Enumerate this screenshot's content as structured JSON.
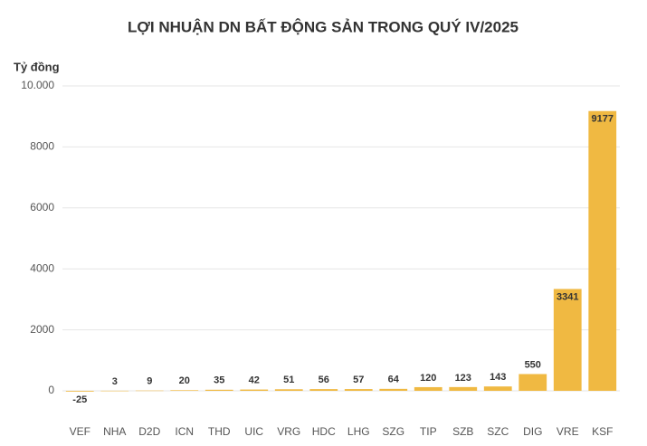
{
  "chart_data": {
    "type": "bar",
    "title": "LỢI NHUẬN DN BẤT ĐỘNG SẢN TRONG QUÝ IV/2025",
    "y_label": "Tỷ đồng",
    "categories": [
      "VEF",
      "NHA",
      "D2D",
      "ICN",
      "THD",
      "UIC",
      "VRG",
      "HDC",
      "LHG",
      "SZG",
      "TIP",
      "SZB",
      "SZC",
      "DIG",
      "VRE",
      "KSF"
    ],
    "values": [
      -25,
      3,
      9,
      20,
      35,
      42,
      51,
      56,
      57,
      64,
      120,
      123,
      143,
      550,
      3341,
      9177
    ],
    "color": "#f0b942",
    "ylim": [
      -200,
      10000
    ],
    "yticks": [
      0,
      2000,
      4000,
      6000,
      8000,
      {
        "value": 10000,
        "label": "10.000"
      }
    ],
    "grid": true
  }
}
